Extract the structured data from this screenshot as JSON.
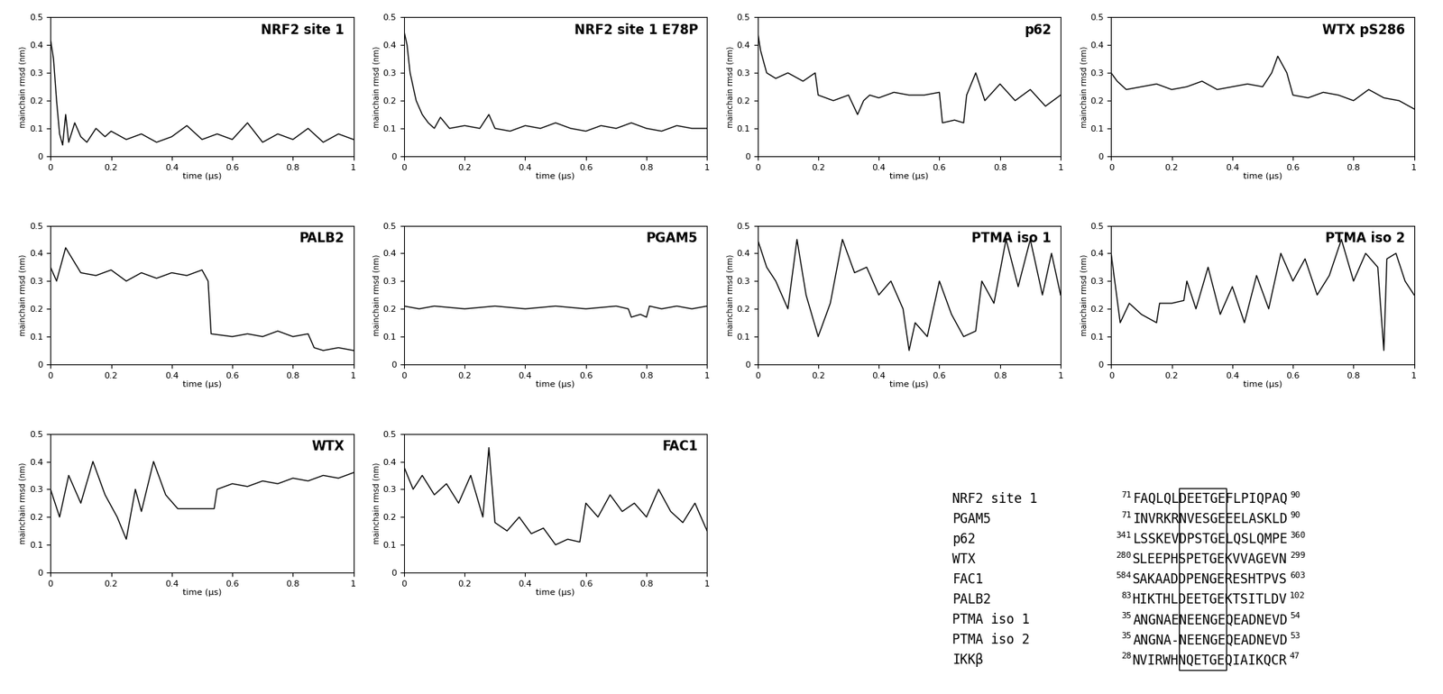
{
  "chart_data": [
    {
      "type": "line",
      "title": "NRF2 site 1",
      "x_label": "time (µs)",
      "y_label": "mainchain rmsd (nm)",
      "color": "#000000",
      "xlim": [
        0,
        1
      ],
      "ylim": [
        0,
        0.5
      ],
      "xticks": [
        0,
        0.2,
        0.4,
        0.6,
        0.8,
        1
      ],
      "yticks": [
        0,
        0.1,
        0.2,
        0.3,
        0.4,
        0.5
      ],
      "x": [
        0,
        0.01,
        0.02,
        0.03,
        0.04,
        0.05,
        0.06,
        0.08,
        0.1,
        0.12,
        0.15,
        0.18,
        0.2,
        0.25,
        0.3,
        0.35,
        0.4,
        0.45,
        0.5,
        0.55,
        0.6,
        0.65,
        0.7,
        0.75,
        0.8,
        0.85,
        0.9,
        0.95,
        1.0
      ],
      "values": [
        0.42,
        0.35,
        0.2,
        0.08,
        0.04,
        0.15,
        0.05,
        0.12,
        0.07,
        0.05,
        0.1,
        0.07,
        0.09,
        0.06,
        0.08,
        0.05,
        0.07,
        0.11,
        0.06,
        0.08,
        0.06,
        0.12,
        0.05,
        0.08,
        0.06,
        0.1,
        0.05,
        0.08,
        0.06
      ]
    },
    {
      "type": "line",
      "title": "NRF2 site 1 E78P",
      "x_label": "time (µs)",
      "y_label": "mainchain rmsd (nm)",
      "color": "#000000",
      "xlim": [
        0,
        1
      ],
      "ylim": [
        0,
        0.5
      ],
      "xticks": [
        0,
        0.2,
        0.4,
        0.6,
        0.8,
        1
      ],
      "yticks": [
        0,
        0.1,
        0.2,
        0.3,
        0.4,
        0.5
      ],
      "x": [
        0,
        0.01,
        0.02,
        0.04,
        0.06,
        0.08,
        0.1,
        0.12,
        0.15,
        0.2,
        0.25,
        0.28,
        0.3,
        0.35,
        0.4,
        0.45,
        0.5,
        0.55,
        0.6,
        0.65,
        0.7,
        0.75,
        0.8,
        0.85,
        0.9,
        0.95,
        1.0
      ],
      "values": [
        0.45,
        0.4,
        0.3,
        0.2,
        0.15,
        0.12,
        0.1,
        0.14,
        0.1,
        0.11,
        0.1,
        0.15,
        0.1,
        0.09,
        0.11,
        0.1,
        0.12,
        0.1,
        0.09,
        0.11,
        0.1,
        0.12,
        0.1,
        0.09,
        0.11,
        0.1,
        0.1
      ]
    },
    {
      "type": "line",
      "title": "p62",
      "x_label": "time (µs)",
      "y_label": "mainchain rmsd (nm)",
      "color": "#000000",
      "xlim": [
        0,
        1
      ],
      "ylim": [
        0,
        0.5
      ],
      "xticks": [
        0,
        0.2,
        0.4,
        0.6,
        0.8,
        1
      ],
      "yticks": [
        0,
        0.1,
        0.2,
        0.3,
        0.4,
        0.5
      ],
      "x": [
        0,
        0.01,
        0.03,
        0.06,
        0.1,
        0.15,
        0.19,
        0.2,
        0.25,
        0.3,
        0.33,
        0.35,
        0.37,
        0.4,
        0.45,
        0.5,
        0.55,
        0.6,
        0.61,
        0.65,
        0.68,
        0.69,
        0.72,
        0.75,
        0.8,
        0.85,
        0.9,
        0.95,
        1.0
      ],
      "values": [
        0.45,
        0.38,
        0.3,
        0.28,
        0.3,
        0.27,
        0.3,
        0.22,
        0.2,
        0.22,
        0.15,
        0.2,
        0.22,
        0.21,
        0.23,
        0.22,
        0.22,
        0.23,
        0.12,
        0.13,
        0.12,
        0.22,
        0.3,
        0.2,
        0.26,
        0.2,
        0.24,
        0.18,
        0.22
      ]
    },
    {
      "type": "line",
      "title": "WTX pS286",
      "x_label": "time (µs)",
      "y_label": "mainchain rmsd (nm)",
      "color": "#000000",
      "xlim": [
        0,
        1
      ],
      "ylim": [
        0,
        0.5
      ],
      "xticks": [
        0,
        0.2,
        0.4,
        0.6,
        0.8,
        1
      ],
      "yticks": [
        0,
        0.1,
        0.2,
        0.3,
        0.4,
        0.5
      ],
      "x": [
        0,
        0.02,
        0.05,
        0.1,
        0.15,
        0.2,
        0.25,
        0.3,
        0.35,
        0.4,
        0.45,
        0.5,
        0.53,
        0.55,
        0.58,
        0.6,
        0.65,
        0.7,
        0.75,
        0.8,
        0.85,
        0.9,
        0.95,
        1.0
      ],
      "values": [
        0.3,
        0.27,
        0.24,
        0.25,
        0.26,
        0.24,
        0.25,
        0.27,
        0.24,
        0.25,
        0.26,
        0.25,
        0.3,
        0.36,
        0.3,
        0.22,
        0.21,
        0.23,
        0.22,
        0.2,
        0.24,
        0.21,
        0.2,
        0.17
      ]
    },
    {
      "type": "line",
      "title": "PALB2",
      "x_label": "time (µs)",
      "y_label": "mainchain rmsd (nm)",
      "color": "#000000",
      "xlim": [
        0,
        1
      ],
      "ylim": [
        0,
        0.5
      ],
      "xticks": [
        0,
        0.2,
        0.4,
        0.6,
        0.8,
        1
      ],
      "yticks": [
        0,
        0.1,
        0.2,
        0.3,
        0.4,
        0.5
      ],
      "x": [
        0,
        0.02,
        0.05,
        0.1,
        0.15,
        0.2,
        0.25,
        0.3,
        0.35,
        0.4,
        0.45,
        0.5,
        0.52,
        0.53,
        0.6,
        0.65,
        0.7,
        0.75,
        0.8,
        0.85,
        0.87,
        0.9,
        0.95,
        1.0
      ],
      "values": [
        0.35,
        0.3,
        0.42,
        0.33,
        0.32,
        0.34,
        0.3,
        0.33,
        0.31,
        0.33,
        0.32,
        0.34,
        0.3,
        0.11,
        0.1,
        0.11,
        0.1,
        0.12,
        0.1,
        0.11,
        0.06,
        0.05,
        0.06,
        0.05
      ]
    },
    {
      "type": "line",
      "title": "PGAM5",
      "x_label": "time (µs)",
      "y_label": "mainchain rmsd (nm)",
      "color": "#000000",
      "xlim": [
        0,
        1
      ],
      "ylim": [
        0,
        0.5
      ],
      "xticks": [
        0,
        0.2,
        0.4,
        0.6,
        0.8,
        1
      ],
      "yticks": [
        0,
        0.1,
        0.2,
        0.3,
        0.4,
        0.5
      ],
      "x": [
        0,
        0.05,
        0.1,
        0.2,
        0.3,
        0.4,
        0.5,
        0.6,
        0.7,
        0.74,
        0.75,
        0.78,
        0.8,
        0.81,
        0.85,
        0.9,
        0.95,
        1.0
      ],
      "values": [
        0.21,
        0.2,
        0.21,
        0.2,
        0.21,
        0.2,
        0.21,
        0.2,
        0.21,
        0.2,
        0.17,
        0.18,
        0.17,
        0.21,
        0.2,
        0.21,
        0.2,
        0.21
      ]
    },
    {
      "type": "line",
      "title": "PTMA iso 1",
      "x_label": "time (µs)",
      "y_label": "mainchain rmsd (nm)",
      "color": "#000000",
      "xlim": [
        0,
        1
      ],
      "ylim": [
        0,
        0.5
      ],
      "xticks": [
        0,
        0.2,
        0.4,
        0.6,
        0.8,
        1
      ],
      "yticks": [
        0,
        0.1,
        0.2,
        0.3,
        0.4,
        0.5
      ],
      "x": [
        0,
        0.03,
        0.06,
        0.1,
        0.13,
        0.16,
        0.2,
        0.24,
        0.28,
        0.32,
        0.36,
        0.4,
        0.44,
        0.48,
        0.5,
        0.52,
        0.56,
        0.6,
        0.64,
        0.68,
        0.72,
        0.74,
        0.78,
        0.82,
        0.86,
        0.9,
        0.94,
        0.97,
        1.0
      ],
      "values": [
        0.45,
        0.35,
        0.3,
        0.2,
        0.45,
        0.25,
        0.1,
        0.22,
        0.45,
        0.33,
        0.35,
        0.25,
        0.3,
        0.2,
        0.05,
        0.15,
        0.1,
        0.3,
        0.18,
        0.1,
        0.12,
        0.3,
        0.22,
        0.45,
        0.28,
        0.45,
        0.25,
        0.4,
        0.25
      ]
    },
    {
      "type": "line",
      "title": "PTMA iso 2",
      "x_label": "time (µs)",
      "y_label": "mainchain rmsd (nm)",
      "color": "#000000",
      "xlim": [
        0,
        1
      ],
      "ylim": [
        0,
        0.5
      ],
      "xticks": [
        0,
        0.2,
        0.4,
        0.6,
        0.8,
        1
      ],
      "yticks": [
        0,
        0.1,
        0.2,
        0.3,
        0.4,
        0.5
      ],
      "x": [
        0,
        0.03,
        0.06,
        0.1,
        0.15,
        0.16,
        0.2,
        0.24,
        0.25,
        0.28,
        0.32,
        0.36,
        0.4,
        0.44,
        0.48,
        0.52,
        0.56,
        0.6,
        0.64,
        0.68,
        0.72,
        0.76,
        0.8,
        0.84,
        0.88,
        0.9,
        0.91,
        0.94,
        0.97,
        1.0
      ],
      "values": [
        0.4,
        0.15,
        0.22,
        0.18,
        0.15,
        0.22,
        0.22,
        0.23,
        0.3,
        0.2,
        0.35,
        0.18,
        0.28,
        0.15,
        0.32,
        0.2,
        0.4,
        0.3,
        0.38,
        0.25,
        0.32,
        0.45,
        0.3,
        0.4,
        0.35,
        0.05,
        0.38,
        0.4,
        0.3,
        0.25
      ]
    },
    {
      "type": "line",
      "title": "WTX",
      "x_label": "time (µs)",
      "y_label": "mainchain rmsd (nm)",
      "color": "#000000",
      "xlim": [
        0,
        1
      ],
      "ylim": [
        0,
        0.5
      ],
      "xticks": [
        0,
        0.2,
        0.4,
        0.6,
        0.8,
        1
      ],
      "yticks": [
        0,
        0.1,
        0.2,
        0.3,
        0.4,
        0.5
      ],
      "x": [
        0,
        0.03,
        0.06,
        0.1,
        0.14,
        0.18,
        0.22,
        0.25,
        0.28,
        0.3,
        0.34,
        0.38,
        0.42,
        0.46,
        0.5,
        0.54,
        0.55,
        0.6,
        0.65,
        0.7,
        0.75,
        0.8,
        0.85,
        0.9,
        0.95,
        1.0
      ],
      "values": [
        0.3,
        0.2,
        0.35,
        0.25,
        0.4,
        0.28,
        0.2,
        0.12,
        0.3,
        0.22,
        0.4,
        0.28,
        0.23,
        0.23,
        0.23,
        0.23,
        0.3,
        0.32,
        0.31,
        0.33,
        0.32,
        0.34,
        0.33,
        0.35,
        0.34,
        0.36
      ]
    },
    {
      "type": "line",
      "title": "FAC1",
      "x_label": "time (µs)",
      "y_label": "mainchain rmsd (nm)",
      "color": "#000000",
      "xlim": [
        0,
        1
      ],
      "ylim": [
        0,
        0.5
      ],
      "xticks": [
        0,
        0.2,
        0.4,
        0.6,
        0.8,
        1
      ],
      "yticks": [
        0,
        0.1,
        0.2,
        0.3,
        0.4,
        0.5
      ],
      "x": [
        0,
        0.03,
        0.06,
        0.1,
        0.14,
        0.18,
        0.22,
        0.26,
        0.28,
        0.3,
        0.34,
        0.38,
        0.42,
        0.46,
        0.5,
        0.54,
        0.58,
        0.6,
        0.64,
        0.68,
        0.72,
        0.76,
        0.8,
        0.84,
        0.88,
        0.92,
        0.96,
        1.0
      ],
      "values": [
        0.38,
        0.3,
        0.35,
        0.28,
        0.32,
        0.25,
        0.35,
        0.2,
        0.45,
        0.18,
        0.15,
        0.2,
        0.14,
        0.16,
        0.1,
        0.12,
        0.11,
        0.25,
        0.2,
        0.28,
        0.22,
        0.25,
        0.2,
        0.3,
        0.22,
        0.18,
        0.25,
        0.15
      ]
    }
  ],
  "alignment": {
    "rows": [
      {
        "name": "NRF2 site 1",
        "start": "71",
        "sequence": "FAQLQLDEETGEFLPIQPAQ",
        "end": "90"
      },
      {
        "name": "PGAM5",
        "start": "71",
        "sequence": "INVRKRNVESGEEELASKLD",
        "end": "90"
      },
      {
        "name": "p62",
        "start": "341",
        "sequence": "LSSKEVDPSTGELQSLQMPE",
        "end": "360"
      },
      {
        "name": "WTX",
        "start": "280",
        "sequence": "SLEEPHSPETGEKVVAGEVN",
        "end": "299"
      },
      {
        "name": "FAC1",
        "start": "584",
        "sequence": "SAKAADDPENGERESHTPVS",
        "end": "603"
      },
      {
        "name": "PALB2",
        "start": "83",
        "sequence": "HIKTHLDEETGEKTSITLDV",
        "end": "102"
      },
      {
        "name": "PTMA iso 1",
        "start": "35",
        "sequence": "ANGNAENEENGEQEADNEVD",
        "end": "54"
      },
      {
        "name": "PTMA iso 2",
        "start": "35",
        "sequence": "ANGNA-NEENGEQEADNEVD",
        "end": "53"
      },
      {
        "name": "IKKβ",
        "start": "28",
        "sequence": "NVIRWHNQETGEQIAIKQCR",
        "end": "47"
      }
    ]
  }
}
